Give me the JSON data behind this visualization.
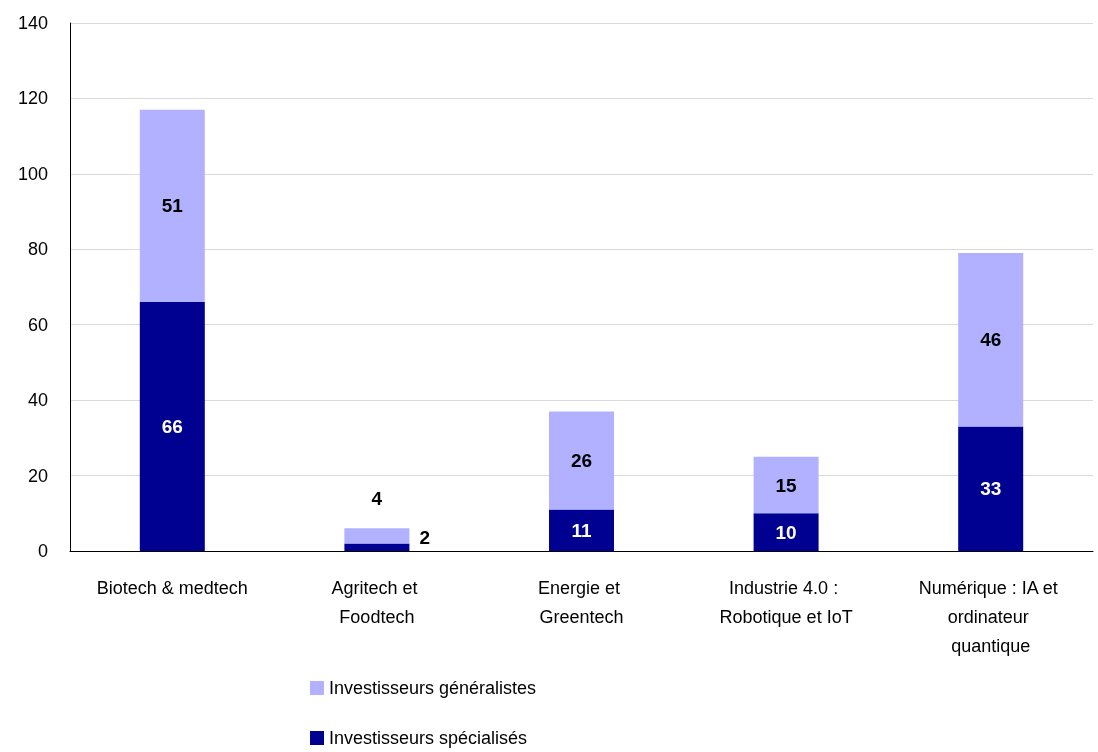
{
  "chart_data": {
    "type": "bar",
    "stacked": true,
    "categories": [
      "Biotech & medtech",
      "Agritech et Foodtech",
      "Energie et Greentech",
      "Industrie 4.0 : Robotique et IoT",
      "Numérique : IA et ordinateur quantique"
    ],
    "series": [
      {
        "name": "Investisseurs spécialisés",
        "color": "#000091",
        "values": [
          66,
          2,
          11,
          10,
          33
        ]
      },
      {
        "name": "Investisseurs généralistes",
        "color": "#b1b1ff",
        "values": [
          51,
          4,
          26,
          15,
          46
        ]
      }
    ],
    "ylim": [
      0,
      140
    ],
    "yticks": [
      0,
      20,
      40,
      60,
      80,
      100,
      120,
      140
    ],
    "grid": "y",
    "legend": "bottom",
    "data_labels": true
  }
}
